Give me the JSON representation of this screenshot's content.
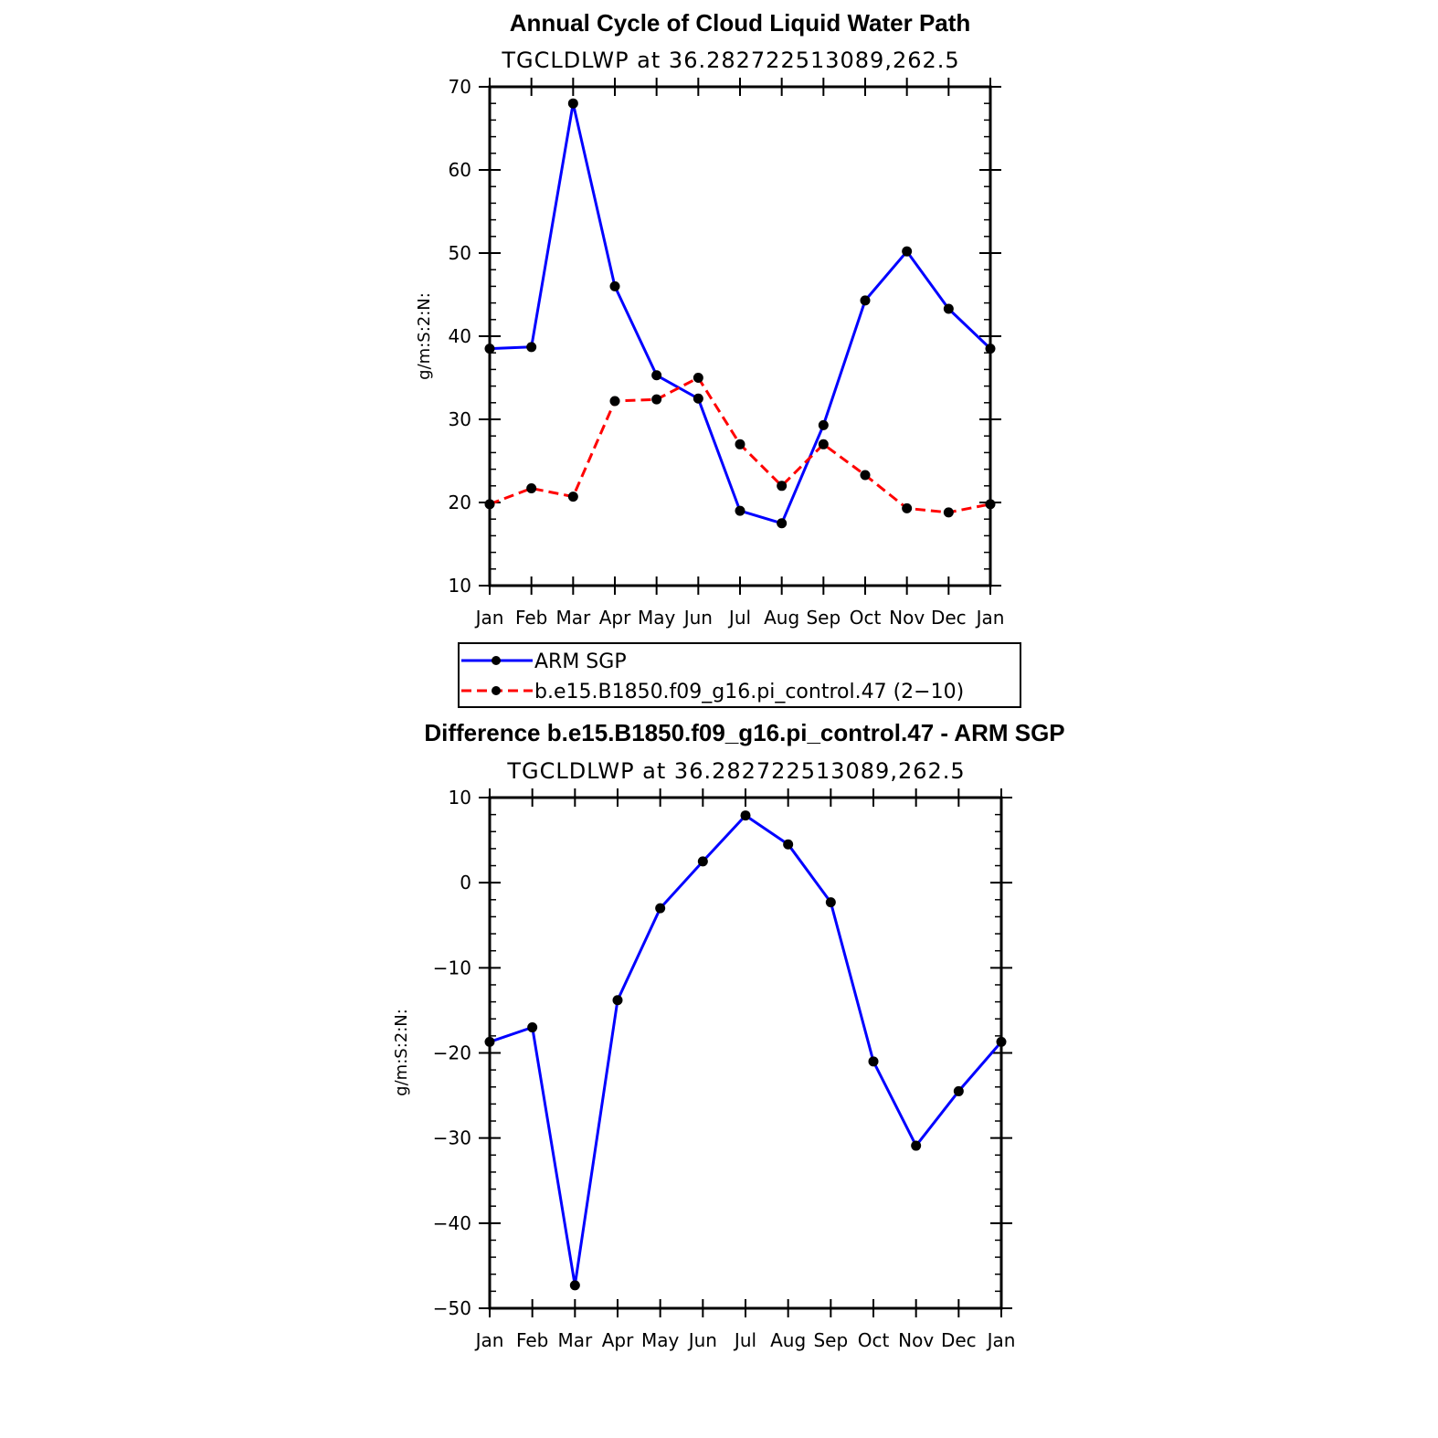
{
  "chart_data": [
    {
      "type": "line",
      "title": "Annual Cycle of Cloud Liquid Water Path",
      "subtitle": "TGCLDLWP  at  36.282722513089,262.5",
      "ylabel": "g/m:S:2:N:",
      "xlabel": "",
      "categories": [
        "Jan",
        "Feb",
        "Mar",
        "Apr",
        "May",
        "Jun",
        "Jul",
        "Aug",
        "Sep",
        "Oct",
        "Nov",
        "Dec",
        "Jan"
      ],
      "ylim": [
        10,
        70
      ],
      "yticks": [
        10,
        20,
        30,
        40,
        50,
        60,
        70
      ],
      "grid": false,
      "legend": "below",
      "series": [
        {
          "name": "ARM  SGP",
          "color": "#0000ff",
          "dash": "solid",
          "values": [
            38.5,
            38.7,
            68.0,
            46.0,
            35.3,
            32.5,
            19.0,
            17.5,
            29.3,
            44.3,
            50.2,
            43.3,
            38.5
          ]
        },
        {
          "name": "b.e15.B1850.f09_g16.pi_control.47 (2−10)",
          "color": "#ff0000",
          "dash": "dashed",
          "values": [
            19.8,
            21.7,
            20.7,
            32.2,
            32.4,
            35.0,
            27.0,
            22.0,
            27.0,
            23.3,
            19.3,
            18.8,
            19.8
          ]
        }
      ]
    },
    {
      "type": "line",
      "title": "Difference b.e15.B1850.f09_g16.pi_control.47 - ARM SGP",
      "subtitle": "TGCLDLWP  at  36.282722513089,262.5",
      "ylabel": "g/m:S:2:N:",
      "xlabel": "",
      "categories": [
        "Jan",
        "Feb",
        "Mar",
        "Apr",
        "May",
        "Jun",
        "Jul",
        "Aug",
        "Sep",
        "Oct",
        "Nov",
        "Dec",
        "Jan"
      ],
      "ylim": [
        -50,
        10
      ],
      "yticks": [
        -50,
        -40,
        -30,
        -20,
        -10,
        0,
        10
      ],
      "ytick_labels": [
        "−50",
        "−40",
        "−30",
        "−20",
        "−10",
        "0",
        "10"
      ],
      "grid": false,
      "series": [
        {
          "color": "#0000ff",
          "dash": "solid",
          "values": [
            -18.7,
            -17.0,
            -47.3,
            -13.8,
            -3.0,
            2.5,
            7.9,
            4.5,
            -2.3,
            -21.0,
            -30.9,
            -24.5,
            -18.7
          ]
        }
      ]
    }
  ]
}
